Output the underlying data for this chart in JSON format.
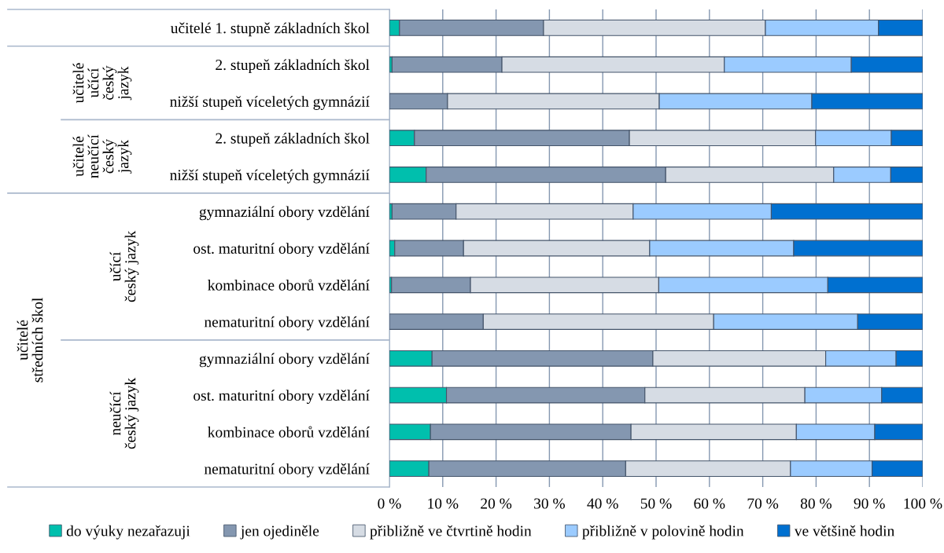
{
  "chart_data": {
    "type": "bar",
    "orientation": "horizontal",
    "stacked": true,
    "categories": [
      "učitelé 1. stupně základních škol",
      "2. stupeň základních škol",
      "nižší stupeň víceletých gymnázií",
      "2. stupeň základních škol",
      "nižší stupeň víceletých gymnázií",
      "gymnaziální obory vzdělání",
      "ost. maturitní obory vzdělání",
      "kombinace oborů vzdělání",
      "nematuritní obory vzdělání",
      "gymnaziální obory vzdělání",
      "ost. maturitní obory vzdělání",
      "kombinace oborů vzdělání",
      "nematuritní obory vzdělání"
    ],
    "series": [
      {
        "name": "do výuky nezařazuji",
        "color": "#00bfad",
        "values": [
          1.9,
          0.5,
          0,
          4.7,
          6.9,
          0.5,
          1.0,
          0.4,
          0,
          8.0,
          10.7,
          7.7,
          7.4
        ]
      },
      {
        "name": "jen ojediněle",
        "color": "#8497b0",
        "values": [
          27.0,
          20.6,
          10.9,
          40.3,
          44.9,
          12.0,
          12.9,
          14.8,
          17.6,
          41.4,
          37.2,
          37.6,
          36.9
        ]
      },
      {
        "name": "přibližně ve čtvrtině hodin",
        "color": "#d6dce4",
        "values": [
          41.6,
          41.7,
          39.7,
          34.9,
          31.5,
          33.2,
          34.9,
          35.3,
          43.2,
          32.4,
          30.0,
          31.0,
          30.9
        ]
      },
      {
        "name": "přibližně v polovině hodin",
        "color": "#9bcbff",
        "values": [
          21.2,
          23.8,
          28.6,
          14.2,
          10.7,
          25.9,
          27.0,
          31.7,
          27.0,
          13.2,
          14.4,
          14.7,
          15.3
        ]
      },
      {
        "name": "ve většině hodin",
        "color": "#0070d0",
        "values": [
          8.3,
          13.4,
          20.8,
          5.9,
          6.0,
          28.4,
          24.2,
          17.8,
          12.2,
          5.0,
          7.7,
          9.0,
          9.5
        ]
      }
    ],
    "xlim": [
      0,
      100
    ],
    "xticks": [
      {
        "value": 0,
        "label": "0 %"
      },
      {
        "value": 10,
        "label": "10 %"
      },
      {
        "value": 20,
        "label": "20 %"
      },
      {
        "value": 30,
        "label": "30 %"
      },
      {
        "value": 40,
        "label": "40 %"
      },
      {
        "value": 50,
        "label": "50 %"
      },
      {
        "value": 60,
        "label": "60 %"
      },
      {
        "value": 70,
        "label": "70 %"
      },
      {
        "value": 80,
        "label": "80 %"
      },
      {
        "value": 90,
        "label": "90 %"
      },
      {
        "value": 100,
        "label": "100 %"
      }
    ],
    "grid": "x",
    "legend": "bottom",
    "annotations": [
      "učitelé\nučící\nčeský\njazyk",
      "učitelé\nneučící\nčeský\njazyk",
      "učitelé\nstředních škol",
      "učící\nčeský jazyk",
      "neučící\nčeský jazyk"
    ]
  }
}
